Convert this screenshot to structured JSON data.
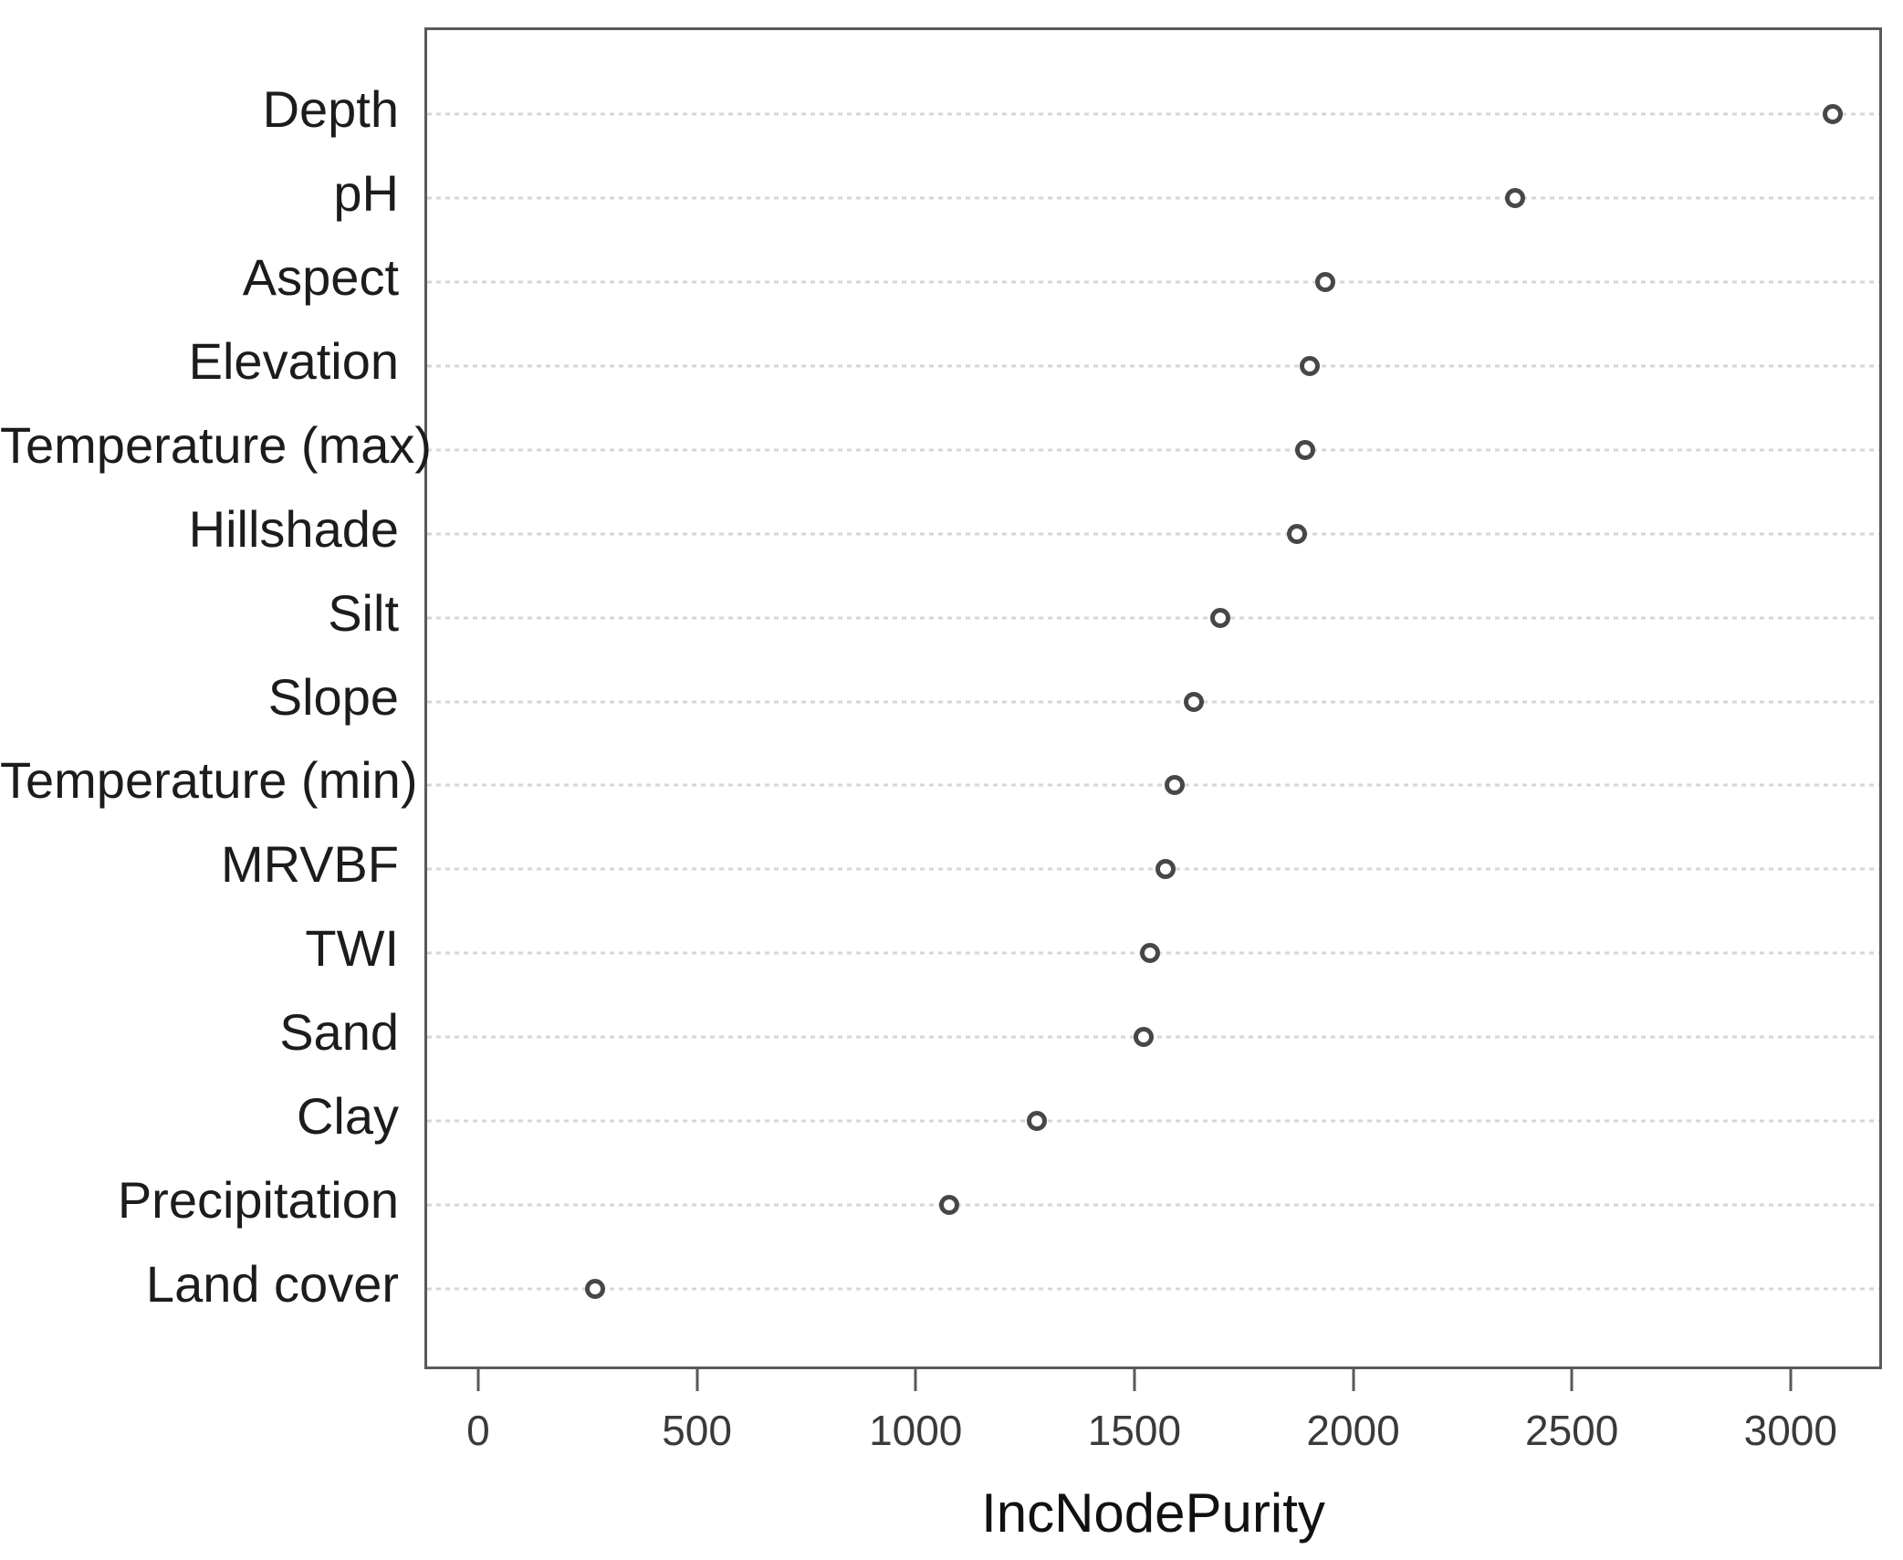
{
  "chart_data": {
    "type": "scatter",
    "subtype": "dot-chart-variable-importance",
    "title": "",
    "xlabel": "IncNodePurity",
    "ylabel": "",
    "categories": [
      "Depth",
      "pH",
      "Aspect",
      "Elevation",
      "Temperature (max)",
      "Hillshade",
      "Silt",
      "Slope",
      "Temperature (min)",
      "MRVBF",
      "TWI",
      "Sand",
      "Clay",
      "Precipitation",
      "Land cover"
    ],
    "values": [
      3090,
      2365,
      1930,
      1895,
      1885,
      1865,
      1690,
      1630,
      1585,
      1565,
      1530,
      1515,
      1270,
      1070,
      260
    ],
    "x_ticks": [
      0,
      500,
      1000,
      1500,
      2000,
      2500,
      3000
    ],
    "xlim": [
      -123,
      3209
    ],
    "grid": "horizontal-dotted",
    "legend": "none",
    "point_style": "open-circle",
    "colors": {
      "point_ring": "#474747",
      "point_fill": "#ffffff",
      "grid": "#d6d6d6",
      "frame": "#595959",
      "category_label": "#1c1c1c",
      "tick_label": "#3a3a3a",
      "axis_title": "#111111",
      "background": "#ffffff"
    }
  }
}
